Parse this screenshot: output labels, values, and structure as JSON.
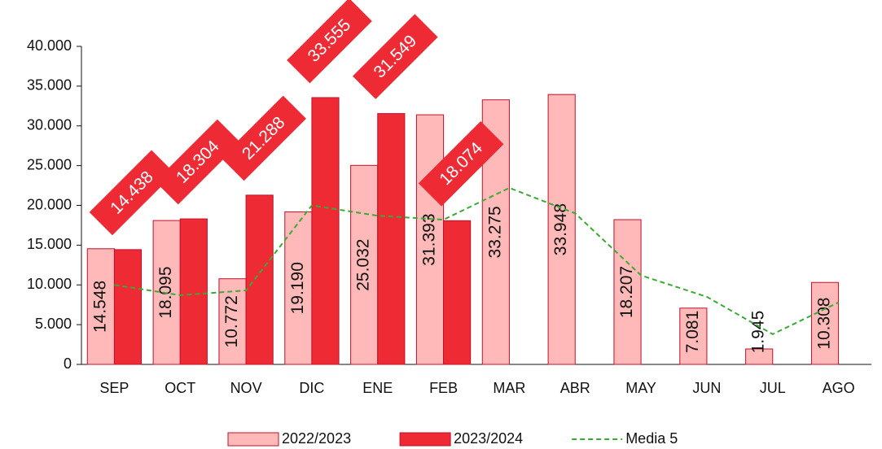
{
  "chart_data": {
    "type": "bar",
    "categories": [
      "SEP",
      "OCT",
      "NOV",
      "DIC",
      "ENE",
      "FEB",
      "MAR",
      "ABR",
      "MAY",
      "JUN",
      "JUL",
      "AGO"
    ],
    "series": [
      {
        "name": "2022/2023",
        "color": "#ffb9b9",
        "values": [
          14548,
          18095,
          10772,
          19190,
          25032,
          31393,
          33275,
          33948,
          18207,
          7081,
          1945,
          10308
        ],
        "value_labels": [
          "14.548",
          "18.095",
          "10.772",
          "19.190",
          "25.032",
          "31.393",
          "33.275",
          "33.948",
          "18.207",
          "7.081",
          "1.945",
          "10.308"
        ]
      },
      {
        "name": "2023/2024",
        "color": "#ee2b35",
        "values": [
          14438,
          18304,
          21288,
          33555,
          31549,
          18074,
          null,
          null,
          null,
          null,
          null,
          null
        ],
        "value_labels": [
          "14.438",
          "18.304",
          "21.288",
          "33.555",
          "31.549",
          "18.074",
          null,
          null,
          null,
          null,
          null,
          null
        ]
      },
      {
        "name": "Media 5",
        "type": "line",
        "color": "#3aaa35",
        "values": [
          10000,
          8700,
          9300,
          20000,
          18700,
          18200,
          22200,
          19000,
          11200,
          8500,
          3800,
          7800
        ]
      }
    ],
    "ylim": [
      0,
      40000
    ],
    "yticks": [
      0,
      {
        "value": 5000,
        "label": "5.000"
      },
      {
        "value": 10000,
        "label": "10.000"
      },
      {
        "value": 15000,
        "label": "15.000"
      },
      {
        "value": 20000,
        "label": "20.000"
      },
      {
        "value": 25000,
        "label": "25.000"
      },
      {
        "value": 30000,
        "label": "30.000"
      },
      {
        "value": 35000,
        "label": "35.000"
      },
      {
        "value": 40000,
        "label": "40.000"
      }
    ],
    "legend": "bottom"
  }
}
